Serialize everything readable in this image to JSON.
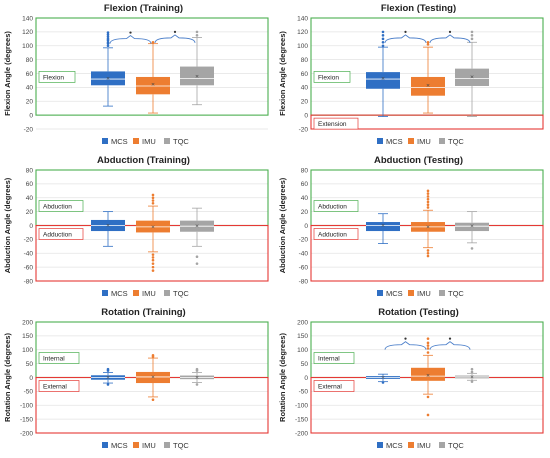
{
  "colors": {
    "MCS": "#2f6fc4",
    "IMU": "#ed7d31",
    "TQC": "#a5a5a5",
    "positive_zone": "#4caf50",
    "negative_zone": "#e53935",
    "brace": "#4a7ec9"
  },
  "chart_data": [
    {
      "type": "boxplot",
      "title": "Flexion (Training)",
      "ylabel": "Flexion Angle (degrees)",
      "ylim": [
        -20,
        140
      ],
      "yticks": [
        -20,
        0,
        20,
        40,
        60,
        80,
        100,
        120,
        140
      ],
      "grid": true,
      "legend": "bottom",
      "zones": [
        {
          "label": "Flexion",
          "sign": "positive"
        }
      ],
      "significance": true,
      "series": [
        {
          "name": "MCS",
          "whisker_low": 13,
          "q1": 43,
          "median": 52,
          "q3": 63,
          "whisker_high": 97,
          "mean": 53,
          "outliers": [
            100,
            103,
            105,
            108,
            110,
            113,
            116,
            119
          ]
        },
        {
          "name": "IMU",
          "whisker_low": 3,
          "q1": 30,
          "median": 42,
          "q3": 55,
          "whisker_high": 103,
          "mean": 44,
          "outliers": [
            105
          ]
        },
        {
          "name": "TQC",
          "whisker_low": 15,
          "q1": 43,
          "median": 53,
          "q3": 70,
          "whisker_high": 112,
          "mean": 56,
          "outliers": [
            115,
            120
          ]
        }
      ]
    },
    {
      "type": "boxplot",
      "title": "Flexion (Testing)",
      "ylabel": "Flexion Angle (degrees)",
      "ylim": [
        -20,
        140
      ],
      "yticks": [
        -20,
        0,
        20,
        40,
        60,
        80,
        100,
        120,
        140
      ],
      "grid": true,
      "legend": "bottom",
      "zones": [
        {
          "label": "Flexion",
          "sign": "positive"
        },
        {
          "label": "Extension",
          "sign": "negative"
        }
      ],
      "significance": true,
      "series": [
        {
          "name": "MCS",
          "whisker_low": -2,
          "q1": 38,
          "median": 52,
          "q3": 62,
          "whisker_high": 98,
          "mean": 53,
          "outliers": [
            100,
            105,
            110,
            115,
            120
          ]
        },
        {
          "name": "IMU",
          "whisker_low": 3,
          "q1": 28,
          "median": 40,
          "q3": 55,
          "whisker_high": 98,
          "mean": 43,
          "outliers": [
            102,
            105
          ]
        },
        {
          "name": "TQC",
          "whisker_low": -2,
          "q1": 42,
          "median": 53,
          "q3": 67,
          "whisker_high": 105,
          "mean": 55,
          "outliers": [
            110,
            115,
            120
          ]
        }
      ]
    },
    {
      "type": "boxplot",
      "title": "Abduction (Training)",
      "ylabel": "Abduction Angle (degrees)",
      "ylim": [
        -80,
        80
      ],
      "yticks": [
        -80,
        -60,
        -40,
        -20,
        0,
        20,
        40,
        60,
        80
      ],
      "grid": true,
      "legend": "bottom",
      "zones": [
        {
          "label": "Abduction",
          "sign": "positive"
        },
        {
          "label": "Adduction",
          "sign": "negative"
        }
      ],
      "significance": false,
      "series": [
        {
          "name": "MCS",
          "whisker_low": -30,
          "q1": -8,
          "median": 0,
          "q3": 8,
          "whisker_high": 20,
          "mean": 0,
          "outliers": []
        },
        {
          "name": "IMU",
          "whisker_low": -38,
          "q1": -10,
          "median": -2,
          "q3": 7,
          "whisker_high": 28,
          "mean": -2,
          "outliers": [
            -42,
            -46,
            -50,
            -55,
            -60,
            -65,
            32,
            36,
            40,
            44
          ]
        },
        {
          "name": "TQC",
          "whisker_low": -30,
          "q1": -9,
          "median": -1,
          "q3": 7,
          "whisker_high": 25,
          "mean": -1,
          "outliers": [
            -45,
            -55
          ]
        }
      ]
    },
    {
      "type": "boxplot",
      "title": "Abduction (Testing)",
      "ylabel": "Abduction Angle (degrees)",
      "ylim": [
        -80,
        80
      ],
      "yticks": [
        -80,
        -60,
        -40,
        -20,
        0,
        20,
        40,
        60,
        80
      ],
      "grid": true,
      "legend": "bottom",
      "zones": [
        {
          "label": "Abduction",
          "sign": "positive"
        },
        {
          "label": "Adduction",
          "sign": "negative"
        }
      ],
      "significance": false,
      "series": [
        {
          "name": "MCS",
          "whisker_low": -26,
          "q1": -8,
          "median": 0,
          "q3": 5,
          "whisker_high": 17,
          "mean": 0,
          "outliers": []
        },
        {
          "name": "IMU",
          "whisker_low": -32,
          "q1": -9,
          "median": -2,
          "q3": 5,
          "whisker_high": 22,
          "mean": -2,
          "outliers": [
            -36,
            -40,
            -44,
            26,
            30,
            34,
            38,
            42,
            46,
            50
          ]
        },
        {
          "name": "TQC",
          "whisker_low": -25,
          "q1": -8,
          "median": -1,
          "q3": 4,
          "whisker_high": 20,
          "mean": -1,
          "outliers": [
            -33
          ]
        }
      ]
    },
    {
      "type": "boxplot",
      "title": "Rotation (Training)",
      "ylabel": "Rotation Angle (degrees)",
      "ylim": [
        -200,
        200
      ],
      "yticks": [
        -200,
        -150,
        -100,
        -50,
        0,
        50,
        100,
        150,
        200
      ],
      "grid": true,
      "legend": "bottom",
      "zones": [
        {
          "label": "Internal",
          "sign": "positive"
        },
        {
          "label": "External",
          "sign": "negative"
        }
      ],
      "significance": false,
      "series": [
        {
          "name": "MCS",
          "whisker_low": -20,
          "q1": -8,
          "median": 0,
          "q3": 8,
          "whisker_high": 18,
          "mean": 0,
          "outliers": [
            -25,
            25,
            30
          ]
        },
        {
          "name": "IMU",
          "whisker_low": -70,
          "q1": -20,
          "median": 2,
          "q3": 20,
          "whisker_high": 70,
          "mean": 2,
          "outliers": [
            -80,
            75,
            80
          ]
        },
        {
          "name": "TQC",
          "whisker_low": -18,
          "q1": -6,
          "median": 0,
          "q3": 7,
          "whisker_high": 18,
          "mean": 0,
          "outliers": [
            -25,
            25,
            30
          ]
        }
      ]
    },
    {
      "type": "boxplot",
      "title": "Rotation (Testing)",
      "ylabel": "Rotation Angle (degrees)",
      "ylim": [
        -200,
        200
      ],
      "yticks": [
        -200,
        -150,
        -100,
        -50,
        0,
        50,
        100,
        150,
        200
      ],
      "grid": true,
      "legend": "bottom",
      "zones": [
        {
          "label": "Internal",
          "sign": "positive"
        },
        {
          "label": "External",
          "sign": "negative"
        }
      ],
      "significance": true,
      "series": [
        {
          "name": "MCS",
          "whisker_low": -15,
          "q1": -5,
          "median": 0,
          "q3": 5,
          "whisker_high": 12,
          "mean": 0,
          "outliers": [
            -18
          ]
        },
        {
          "name": "IMU",
          "whisker_low": -60,
          "q1": -12,
          "median": 5,
          "q3": 35,
          "whisker_high": 80,
          "mean": 8,
          "outliers": [
            -70,
            -135,
            90,
            105,
            115,
            125,
            140
          ]
        },
        {
          "name": "TQC",
          "whisker_low": -10,
          "q1": -3,
          "median": 2,
          "q3": 7,
          "whisker_high": 15,
          "mean": 2,
          "outliers": [
            -15,
            20,
            30
          ]
        }
      ]
    }
  ]
}
